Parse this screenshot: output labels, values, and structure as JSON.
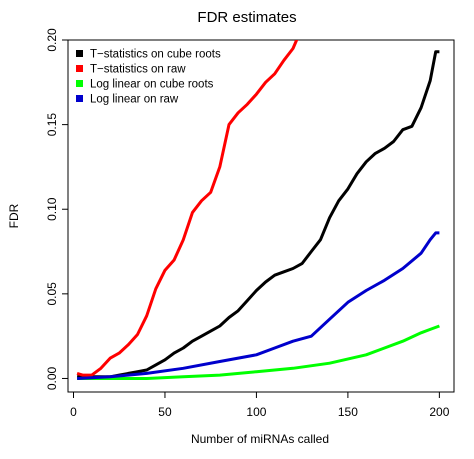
{
  "chart_data": {
    "type": "line",
    "title": "FDR estimates",
    "xlabel": "Number of miRNAs called",
    "ylabel": "FDR",
    "xlim": [
      -3,
      208
    ],
    "ylim": [
      -0.008,
      0.2
    ],
    "x_ticks": [
      0,
      50,
      100,
      150,
      200
    ],
    "x_tick_labels": [
      "0",
      "50",
      "100",
      "150",
      "200"
    ],
    "y_ticks": [
      0.0,
      0.05,
      0.1,
      0.15,
      0.2
    ],
    "y_tick_labels": [
      "0.00",
      "0.05",
      "0.10",
      "0.15",
      "0.20"
    ],
    "grid": false,
    "legend_position": "top-left",
    "series": [
      {
        "name": "T−statistics on cube roots",
        "color": "#000000",
        "points": [
          [
            2,
            0.001
          ],
          [
            10,
            0.001
          ],
          [
            20,
            0.001
          ],
          [
            25,
            0.002
          ],
          [
            30,
            0.003
          ],
          [
            35,
            0.004
          ],
          [
            40,
            0.005
          ],
          [
            45,
            0.008
          ],
          [
            50,
            0.011
          ],
          [
            55,
            0.015
          ],
          [
            60,
            0.018
          ],
          [
            65,
            0.022
          ],
          [
            70,
            0.025
          ],
          [
            75,
            0.028
          ],
          [
            80,
            0.031
          ],
          [
            85,
            0.036
          ],
          [
            90,
            0.04
          ],
          [
            95,
            0.046
          ],
          [
            100,
            0.052
          ],
          [
            105,
            0.057
          ],
          [
            110,
            0.061
          ],
          [
            115,
            0.063
          ],
          [
            120,
            0.065
          ],
          [
            125,
            0.068
          ],
          [
            130,
            0.075
          ],
          [
            135,
            0.082
          ],
          [
            140,
            0.095
          ],
          [
            145,
            0.105
          ],
          [
            150,
            0.112
          ],
          [
            155,
            0.121
          ],
          [
            160,
            0.128
          ],
          [
            165,
            0.133
          ],
          [
            170,
            0.136
          ],
          [
            175,
            0.14
          ],
          [
            180,
            0.147
          ],
          [
            185,
            0.149
          ],
          [
            190,
            0.16
          ],
          [
            195,
            0.176
          ],
          [
            198,
            0.193
          ],
          [
            200,
            0.193
          ]
        ]
      },
      {
        "name": "T−statistics on raw",
        "color": "#ff0000",
        "points": [
          [
            2,
            0.003
          ],
          [
            5,
            0.002
          ],
          [
            10,
            0.002
          ],
          [
            15,
            0.006
          ],
          [
            20,
            0.012
          ],
          [
            25,
            0.015
          ],
          [
            30,
            0.02
          ],
          [
            35,
            0.026
          ],
          [
            40,
            0.037
          ],
          [
            45,
            0.053
          ],
          [
            50,
            0.064
          ],
          [
            55,
            0.07
          ],
          [
            60,
            0.082
          ],
          [
            65,
            0.098
          ],
          [
            70,
            0.105
          ],
          [
            75,
            0.11
          ],
          [
            80,
            0.125
          ],
          [
            85,
            0.15
          ],
          [
            90,
            0.157
          ],
          [
            95,
            0.162
          ],
          [
            100,
            0.168
          ],
          [
            105,
            0.175
          ],
          [
            110,
            0.18
          ],
          [
            115,
            0.188
          ],
          [
            120,
            0.195
          ],
          [
            124,
            0.205
          ]
        ]
      },
      {
        "name": "Log linear on cube roots",
        "color": "#00ff00",
        "points": [
          [
            2,
            0.0
          ],
          [
            20,
            0.0
          ],
          [
            40,
            0.0
          ],
          [
            60,
            0.001
          ],
          [
            80,
            0.002
          ],
          [
            100,
            0.004
          ],
          [
            120,
            0.006
          ],
          [
            140,
            0.009
          ],
          [
            160,
            0.014
          ],
          [
            180,
            0.022
          ],
          [
            190,
            0.027
          ],
          [
            195,
            0.029
          ],
          [
            200,
            0.031
          ]
        ]
      },
      {
        "name": "Log linear on raw",
        "color": "#0000cc",
        "points": [
          [
            2,
            0.0
          ],
          [
            20,
            0.001
          ],
          [
            40,
            0.003
          ],
          [
            60,
            0.006
          ],
          [
            80,
            0.01
          ],
          [
            100,
            0.014
          ],
          [
            110,
            0.018
          ],
          [
            120,
            0.022
          ],
          [
            130,
            0.025
          ],
          [
            140,
            0.035
          ],
          [
            150,
            0.045
          ],
          [
            160,
            0.052
          ],
          [
            170,
            0.058
          ],
          [
            180,
            0.065
          ],
          [
            190,
            0.074
          ],
          [
            195,
            0.082
          ],
          [
            198,
            0.086
          ],
          [
            200,
            0.086
          ]
        ]
      }
    ]
  }
}
